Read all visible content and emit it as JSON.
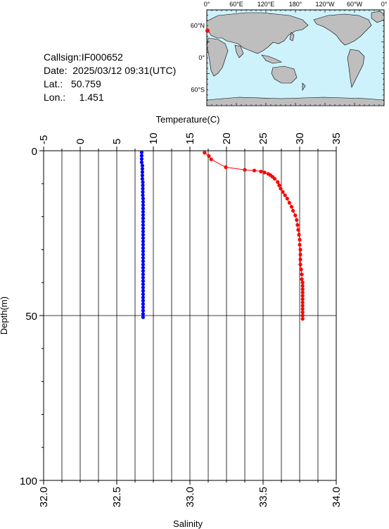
{
  "info": {
    "callsign": "Callsign:IF000652",
    "date": "Date:  2025/03/12 09:31(UTC)",
    "lat": "Lat.:   50.759",
    "lon": "Lon.:     1.451"
  },
  "map": {
    "top_labels": [
      "0°",
      "60°E",
      "120°E",
      "180°",
      "120°W",
      "60°W",
      "0°"
    ],
    "left_labels": [
      "60°N",
      "0°",
      "60°S"
    ],
    "ocean_color": "#cdf2fb",
    "land_color": "#bebebe",
    "float_position": {
      "lat": 50.759,
      "lon": 1.451
    },
    "marker_color": "#ff0000"
  },
  "chart_data": {
    "type": "scatter",
    "top_axis": {
      "title": "Temperature(C)",
      "range": [
        -5,
        35
      ],
      "ticks": [
        "-5",
        "0",
        "5",
        "10",
        "15",
        "20",
        "25",
        "30",
        "35"
      ]
    },
    "bottom_axis": {
      "title": "Salinity",
      "range": [
        32.0,
        34.0
      ],
      "ticks": [
        "32.0",
        "32.5",
        "33.0",
        "33.5",
        "34.0"
      ]
    },
    "left_axis": {
      "title": "Depth(m)",
      "range": [
        0,
        100
      ],
      "inverted": true,
      "ticks": [
        "0",
        "50",
        "100"
      ]
    },
    "grid": true,
    "series": [
      {
        "axis": "temperature",
        "color": "#ff0000",
        "connected": true,
        "points": [
          [
            17.0,
            0.6
          ],
          [
            17.6,
            1.6
          ],
          [
            17.9,
            2.6
          ],
          [
            19.9,
            5.0
          ],
          [
            22.5,
            5.8
          ],
          [
            23.8,
            6.0
          ],
          [
            24.7,
            6.3
          ],
          [
            25.2,
            6.6
          ],
          [
            25.7,
            7.0
          ],
          [
            26.0,
            7.4
          ],
          [
            26.3,
            7.9
          ],
          [
            26.6,
            8.5
          ],
          [
            27.0,
            9.5
          ],
          [
            27.2,
            10.5
          ],
          [
            27.4,
            11.5
          ],
          [
            27.7,
            12.5
          ],
          [
            28.0,
            13.5
          ],
          [
            28.3,
            14.5
          ],
          [
            28.6,
            15.8
          ],
          [
            28.9,
            17.0
          ],
          [
            29.1,
            18.2
          ],
          [
            29.4,
            19.6
          ],
          [
            29.6,
            21.0
          ],
          [
            29.7,
            22.5
          ],
          [
            29.8,
            24.0
          ],
          [
            29.9,
            25.5
          ],
          [
            30.0,
            27.0
          ],
          [
            30.0,
            28.5
          ],
          [
            30.1,
            30.0
          ],
          [
            30.1,
            31.5
          ],
          [
            30.1,
            33.0
          ],
          [
            30.1,
            34.5
          ],
          [
            30.2,
            36.0
          ],
          [
            30.3,
            37.5
          ],
          [
            30.3,
            39.0
          ],
          [
            30.4,
            40.0
          ],
          [
            30.4,
            41.0
          ],
          [
            30.4,
            42.0
          ],
          [
            30.4,
            43.0
          ],
          [
            30.4,
            44.0
          ],
          [
            30.4,
            45.0
          ],
          [
            30.4,
            46.0
          ],
          [
            30.4,
            47.0
          ],
          [
            30.4,
            48.0
          ],
          [
            30.4,
            49.0
          ],
          [
            30.4,
            50.0
          ],
          [
            30.4,
            51.0
          ]
        ]
      },
      {
        "axis": "salinity",
        "color": "#0000ff",
        "connected": false,
        "points": [
          [
            32.67,
            0.5
          ],
          [
            32.67,
            1.5
          ],
          [
            32.67,
            2.5
          ],
          [
            32.67,
            3.5
          ],
          [
            32.675,
            4.5
          ],
          [
            32.675,
            5.5
          ],
          [
            32.675,
            6.5
          ],
          [
            32.675,
            7.5
          ],
          [
            32.675,
            8.5
          ],
          [
            32.678,
            9.5
          ],
          [
            32.678,
            10.5
          ],
          [
            32.678,
            11.5
          ],
          [
            32.678,
            12.5
          ],
          [
            32.678,
            13.5
          ],
          [
            32.68,
            14.5
          ],
          [
            32.68,
            15.5
          ],
          [
            32.68,
            16.5
          ],
          [
            32.68,
            17.5
          ],
          [
            32.68,
            18.5
          ],
          [
            32.68,
            19.5
          ],
          [
            32.68,
            20.5
          ],
          [
            32.68,
            21.5
          ],
          [
            32.68,
            22.5
          ],
          [
            32.68,
            23.5
          ],
          [
            32.68,
            24.5
          ],
          [
            32.68,
            25.5
          ],
          [
            32.68,
            26.5
          ],
          [
            32.68,
            27.5
          ],
          [
            32.68,
            28.5
          ],
          [
            32.68,
            29.5
          ],
          [
            32.68,
            30.5
          ],
          [
            32.68,
            31.5
          ],
          [
            32.68,
            32.5
          ],
          [
            32.68,
            33.5
          ],
          [
            32.68,
            34.5
          ],
          [
            32.68,
            35.5
          ],
          [
            32.68,
            36.5
          ],
          [
            32.68,
            37.5
          ],
          [
            32.68,
            38.5
          ],
          [
            32.68,
            39.5
          ],
          [
            32.68,
            40.5
          ],
          [
            32.68,
            41.5
          ],
          [
            32.68,
            42.5
          ],
          [
            32.68,
            43.5
          ],
          [
            32.68,
            44.5
          ],
          [
            32.68,
            45.5
          ],
          [
            32.68,
            46.5
          ],
          [
            32.68,
            47.5
          ],
          [
            32.68,
            48.5
          ],
          [
            32.68,
            49.5
          ],
          [
            32.68,
            50.5
          ]
        ]
      }
    ]
  }
}
